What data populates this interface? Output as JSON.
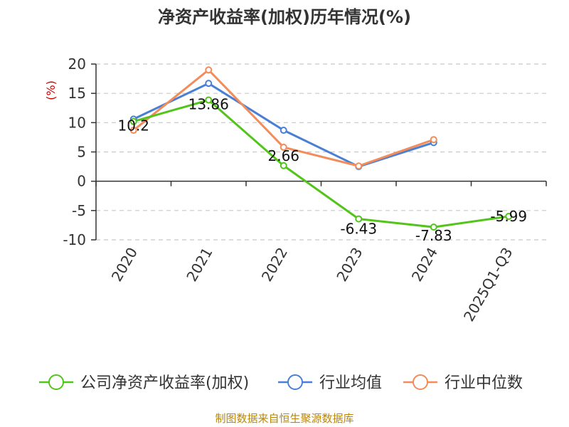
{
  "chart_data": {
    "type": "line",
    "title": "净资产收益率(加权)历年情况(%)",
    "ylabel": "(%)",
    "xlabel": "",
    "categories": [
      "2020",
      "2021",
      "2022",
      "2023",
      "2024",
      "2025Q1-Q3"
    ],
    "ylim": [
      -10,
      20
    ],
    "yticks": [
      20,
      15,
      10,
      5,
      0,
      -5,
      -10
    ],
    "grid": true,
    "legend_position": "bottom",
    "series": [
      {
        "name": "公司净资产收益率(加权)",
        "color": "#52c41a",
        "values": [
          10.2,
          13.86,
          2.66,
          -6.43,
          -7.83,
          -5.99
        ],
        "labels": [
          "10.2",
          "13.86",
          "2.66",
          "-6.43",
          "-7.83",
          "-5.99"
        ]
      },
      {
        "name": "行业均值",
        "color": "#4a7fd6",
        "values": [
          10.6,
          16.7,
          8.7,
          2.5,
          6.6,
          null
        ]
      },
      {
        "name": "行业中位数",
        "color": "#f28c5a",
        "values": [
          8.7,
          19.0,
          5.8,
          2.6,
          7.1,
          null
        ]
      }
    ],
    "source": "制图数据来自恒生聚源数据库"
  }
}
